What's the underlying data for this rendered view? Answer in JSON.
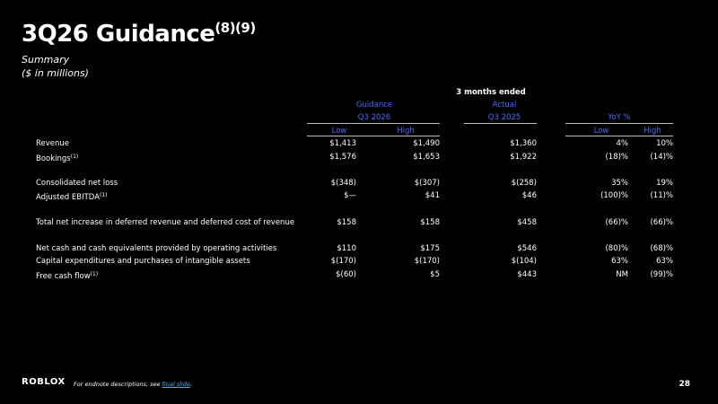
{
  "header": {
    "title": "3Q26 Guidance",
    "title_sup": "(8)(9)",
    "subtitle": "Summary",
    "unit": "($ in millions)"
  },
  "table": {
    "period": "3 months ended",
    "guidance_label": "Guidance",
    "guidance_period": "Q3 2026",
    "actual_label": "Actual",
    "actual_period": "Q3 2025",
    "yoy_label": "YoY %",
    "subcolumns": [
      "Low",
      "High",
      "Low",
      "High"
    ],
    "row_groups": [
      [
        {
          "label": "Revenue",
          "cells": [
            "$1,413",
            "$1,490",
            "$1,360",
            "4%",
            "10%"
          ]
        },
        {
          "label": "Bookings",
          "sup": "(1)",
          "cells": [
            "$1,576",
            "$1,653",
            "$1,922",
            "(18)%",
            "(14)%"
          ]
        }
      ],
      [
        {
          "label": "Consolidated net loss",
          "cells": [
            "$(348)",
            "$(307)",
            "$(258)",
            "35%",
            "19%"
          ]
        },
        {
          "label": "Adjusted EBITDA",
          "sup": "(1)",
          "cells": [
            "$—",
            "$41",
            "$46",
            "(100)%",
            "(11)%"
          ]
        }
      ],
      [
        {
          "label": "Total net increase in deferred revenue and deferred cost of revenue",
          "cells": [
            "$158",
            "$158",
            "$458",
            "(66)%",
            "(66)%"
          ]
        }
      ],
      [
        {
          "label": "Net cash and cash equivalents provided by operating activities",
          "cells": [
            "$110",
            "$175",
            "$546",
            "(80)%",
            "(68)%"
          ]
        },
        {
          "label": "Capital expenditures and purchases of intangible assets",
          "cells": [
            "$(170)",
            "$(170)",
            "$(104)",
            "63%",
            "63%"
          ]
        },
        {
          "label": "Free cash flow",
          "sup": "(1)",
          "cells": [
            "$(60)",
            "$5",
            "$443",
            "NM",
            "(99)%"
          ]
        }
      ]
    ]
  },
  "footer": {
    "logo": "ROBLOX",
    "note": "For endnote descriptions, see",
    "link": "final slide",
    "page": "28"
  }
}
